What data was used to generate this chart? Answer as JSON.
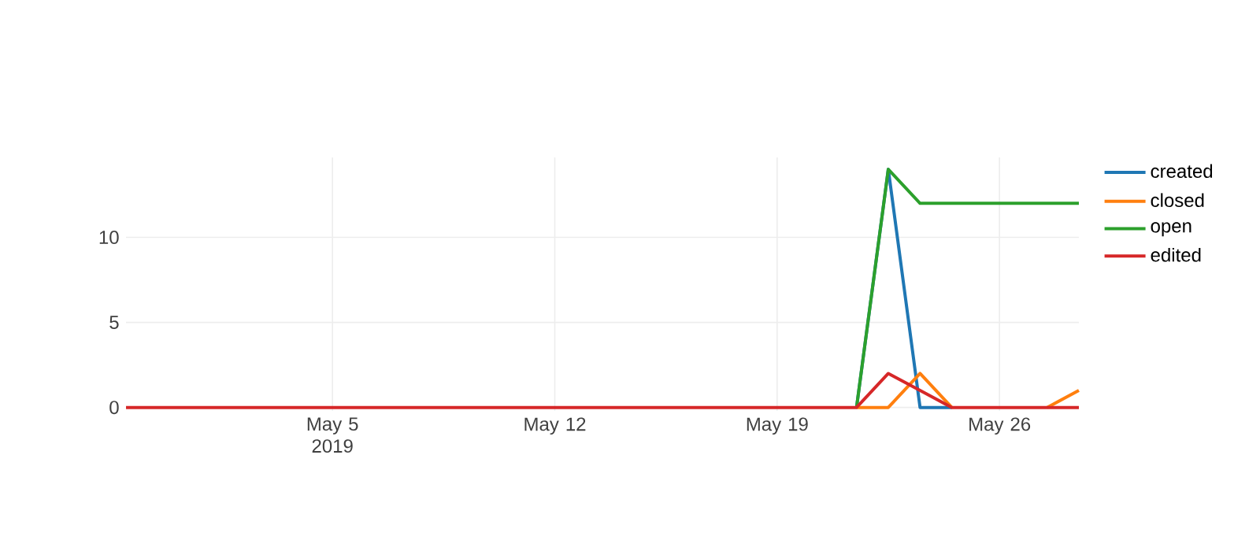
{
  "chart_data": {
    "type": "line",
    "x": [
      "2019-04-28T12:00",
      "2019-04-29T12:00",
      "2019-04-30T12:00",
      "2019-05-01T12:00",
      "2019-05-02T12:00",
      "2019-05-03T12:00",
      "2019-05-04T12:00",
      "2019-05-05T12:00",
      "2019-05-06T12:00",
      "2019-05-07T12:00",
      "2019-05-08T12:00",
      "2019-05-09T12:00",
      "2019-05-10T12:00",
      "2019-05-11T12:00",
      "2019-05-12T12:00",
      "2019-05-13T12:00",
      "2019-05-14T12:00",
      "2019-05-15T12:00",
      "2019-05-16T12:00",
      "2019-05-17T12:00",
      "2019-05-18T12:00",
      "2019-05-19T12:00",
      "2019-05-20T12:00",
      "2019-05-21T12:00",
      "2019-05-22T12:00",
      "2019-05-23T12:00",
      "2019-05-24T12:00",
      "2019-05-25T12:00",
      "2019-05-26T12:00",
      "2019-05-27T12:00",
      "2019-05-28T12:00"
    ],
    "series": [
      {
        "name": "created",
        "color": "#1f77b4",
        "values": [
          null,
          null,
          null,
          null,
          null,
          null,
          null,
          null,
          null,
          null,
          null,
          null,
          null,
          null,
          null,
          null,
          null,
          null,
          null,
          null,
          null,
          null,
          null,
          0,
          14,
          0,
          0,
          null,
          null,
          null,
          null
        ]
      },
      {
        "name": "closed",
        "color": "#ff7f0e",
        "values": [
          null,
          null,
          null,
          null,
          null,
          null,
          null,
          null,
          null,
          null,
          null,
          null,
          null,
          null,
          null,
          null,
          null,
          null,
          null,
          null,
          null,
          null,
          null,
          0,
          0,
          2,
          0,
          null,
          null,
          0,
          1
        ]
      },
      {
        "name": "open",
        "color": "#2ca02c",
        "values": [
          null,
          null,
          null,
          null,
          null,
          null,
          null,
          null,
          null,
          null,
          null,
          null,
          null,
          null,
          null,
          null,
          null,
          null,
          null,
          null,
          null,
          null,
          null,
          0,
          14,
          12,
          12,
          12,
          12,
          12,
          12
        ]
      },
      {
        "name": "edited",
        "color": "#d62728",
        "values": [
          0,
          0,
          0,
          0,
          0,
          0,
          0,
          0,
          0,
          0,
          0,
          0,
          0,
          0,
          0,
          0,
          0,
          0,
          0,
          0,
          0,
          0,
          0,
          0,
          2,
          1,
          0,
          0,
          0,
          0,
          0
        ]
      }
    ],
    "xlim": [
      "2019-04-28T12:00",
      "2019-05-28T12:00"
    ],
    "xticks": [
      {
        "value": "2019-05-05",
        "label": "May 5 2019"
      },
      {
        "value": "2019-05-12",
        "label": "May 12"
      },
      {
        "value": "2019-05-19",
        "label": "May 19"
      },
      {
        "value": "2019-05-26",
        "label": "May 26"
      }
    ],
    "ylim": [
      -0.2,
      14.7
    ],
    "yticks": [
      0,
      5,
      10
    ],
    "grid": true,
    "legend": "top right"
  }
}
